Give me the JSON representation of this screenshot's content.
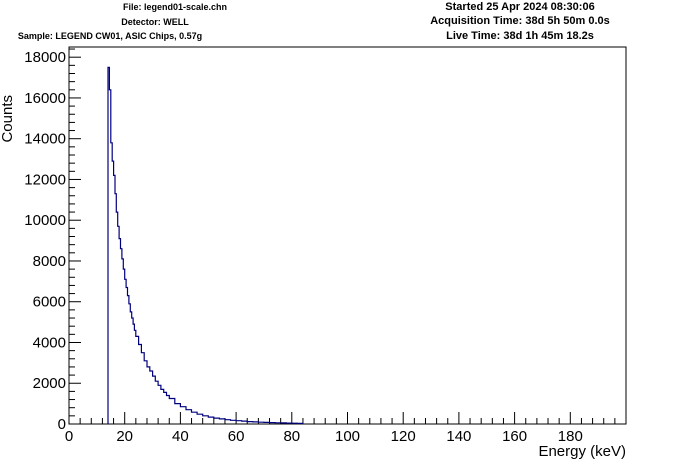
{
  "header": {
    "file": "File: legend01-scale.chn",
    "detector": "Detector: WELL",
    "sample": "Sample: LEGEND CW01, ASIC Chips, 0.57g",
    "started": "Started 25 Apr 2024 08:30:06",
    "acquisition": "Acquisition Time: 38d 5h 50m 0.0s",
    "live": "Live Time: 38d 1h 45m 18.2s"
  },
  "colors": {
    "line": "#00007f",
    "axis": "#000000"
  },
  "chart_data": {
    "type": "line",
    "xlabel": "Energy (keV)",
    "ylabel": "Counts",
    "xlim": [
      0,
      200
    ],
    "ylim": [
      0,
      18500
    ],
    "x_ticks": [
      0,
      20,
      40,
      60,
      80,
      100,
      120,
      140,
      160,
      180
    ],
    "y_ticks": [
      0,
      2000,
      4000,
      6000,
      8000,
      10000,
      12000,
      14000,
      16000,
      18000
    ],
    "x_tick_labels": [
      "0",
      "20",
      "40",
      "60",
      "80",
      "100",
      "120",
      "140",
      "160",
      "180"
    ],
    "y_tick_labels": [
      "0",
      "2000",
      "4000",
      "6000",
      "8000",
      "10000",
      "12000",
      "14000",
      "16000",
      "18000"
    ],
    "grid": false,
    "series": [
      {
        "x": [
          14.0,
          14.5,
          15.0,
          15.5,
          16.0,
          16.5,
          17.0,
          17.5,
          18.0,
          18.5,
          19.0,
          19.5,
          20.0,
          20.5,
          21.0,
          21.5,
          22.0,
          22.5,
          23.0,
          23.5,
          24.0,
          25.0,
          26.0,
          27.0,
          28.0,
          29.0,
          30.0,
          31.0,
          32.0,
          33.0,
          34.0,
          35.0,
          36.0,
          38.0,
          40.0,
          42.0,
          44.0,
          46.0,
          48.0,
          50.0,
          52.0,
          54.0,
          56.0,
          58.0,
          60.0,
          62.0,
          64.0,
          66.0,
          68.0,
          70.0,
          72.0,
          74.0,
          76.0,
          78.0,
          80.0,
          82.0,
          84.0
        ],
        "y": [
          17500,
          16400,
          13800,
          12900,
          12200,
          11300,
          10400,
          9700,
          9100,
          8600,
          8100,
          7600,
          7100,
          6700,
          6300,
          5900,
          5500,
          5200,
          4900,
          4600,
          4300,
          3900,
          3500,
          3100,
          2800,
          2600,
          2350,
          2100,
          1900,
          1700,
          1550,
          1400,
          1250,
          1000,
          850,
          700,
          580,
          480,
          400,
          340,
          290,
          250,
          210,
          180,
          160,
          140,
          120,
          105,
          90,
          80,
          70,
          60,
          52,
          45,
          40,
          30,
          0
        ]
      }
    ]
  }
}
